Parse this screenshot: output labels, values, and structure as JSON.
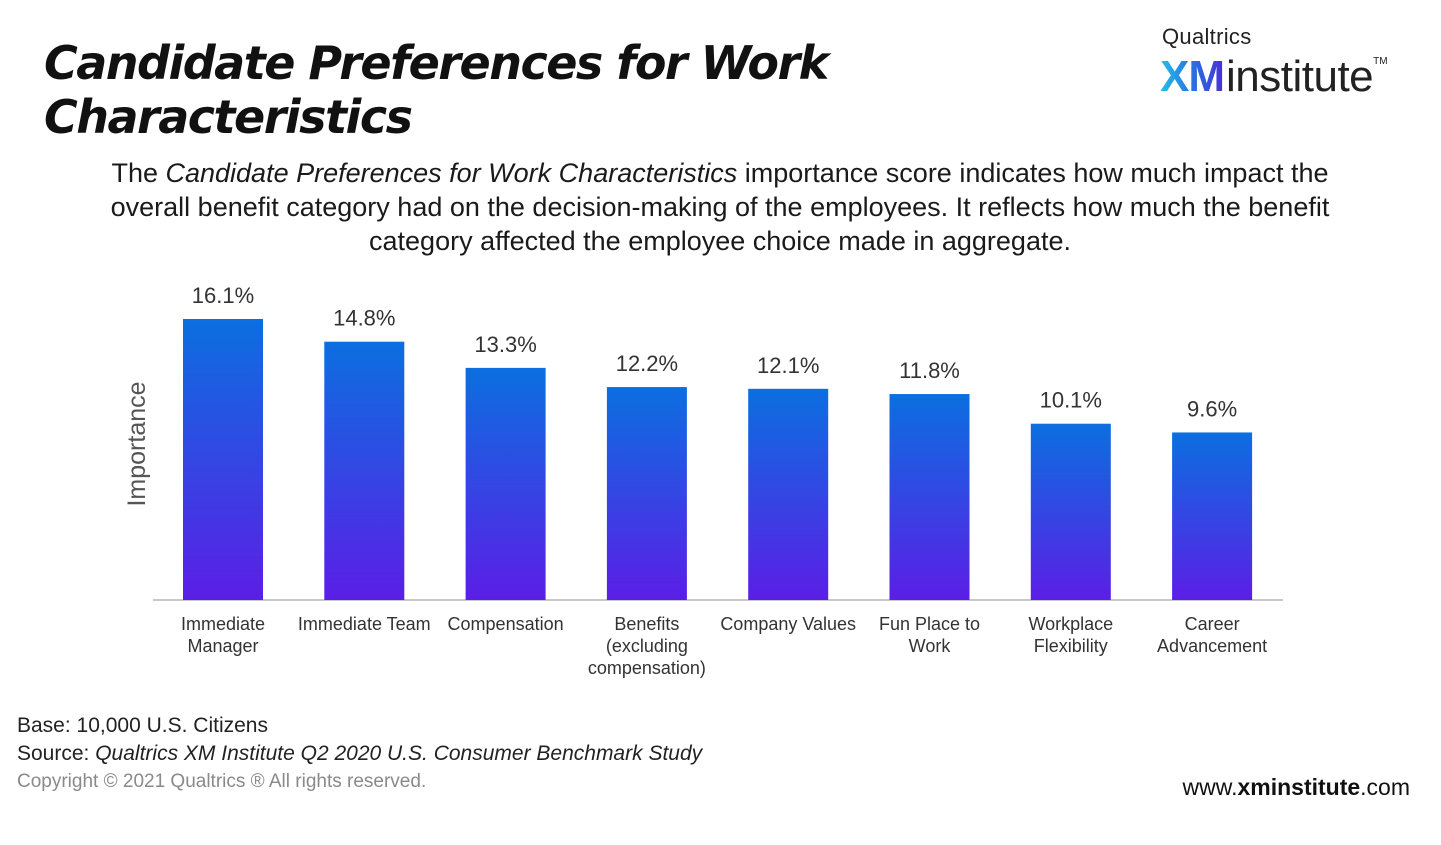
{
  "header": {
    "title": "Candidate Preferences for Work Characteristics",
    "subtitle_prefix": "The ",
    "subtitle_italic": "Candidate Preferences for Work Characteristics",
    "subtitle_suffix": " importance score indicates how much impact the overall benefit category had on the decision-making of the employees. It reflects how much the benefit category affected the employee choice made in aggregate."
  },
  "logo": {
    "top": "Qualtrics",
    "xm": "XM",
    "rest": "institute",
    "tm": "TM"
  },
  "chart_data": {
    "type": "bar",
    "title": "",
    "xlabel": "",
    "ylabel": "Importance",
    "categories": [
      [
        "Immediate",
        "Manager"
      ],
      [
        "Immediate Team"
      ],
      [
        "Compensation"
      ],
      [
        "Benefits",
        "(excluding",
        "compensation)"
      ],
      [
        "Company Values"
      ],
      [
        "Fun Place to",
        "Work"
      ],
      [
        "Workplace",
        "Flexibility"
      ],
      [
        "Career",
        "Advancement"
      ]
    ],
    "values": [
      16.1,
      14.8,
      13.3,
      12.2,
      12.1,
      11.8,
      10.1,
      9.6
    ],
    "value_labels": [
      "16.1%",
      "14.8%",
      "13.3%",
      "12.2%",
      "12.1%",
      "11.8%",
      "10.1%",
      "9.6%"
    ],
    "ylim": [
      0,
      16.1
    ],
    "grid": false,
    "legend": "none",
    "colors": {
      "bar_top": "#0b6fe0",
      "bar_bottom": "#5b1ee6",
      "axis": "#c8c8c8",
      "label": "#333333"
    }
  },
  "footer": {
    "base": "Base: 10,000 U.S. Citizens",
    "source_label": "Source: ",
    "source_text": "Qualtrics XM Institute Q2 2020 U.S. Consumer Benchmark Study",
    "copyright": "Copyright © 2021 Qualtrics ® All rights reserved.",
    "site_prefix": "www.",
    "site_bold": "xminstitute",
    "site_suffix": ".com"
  }
}
